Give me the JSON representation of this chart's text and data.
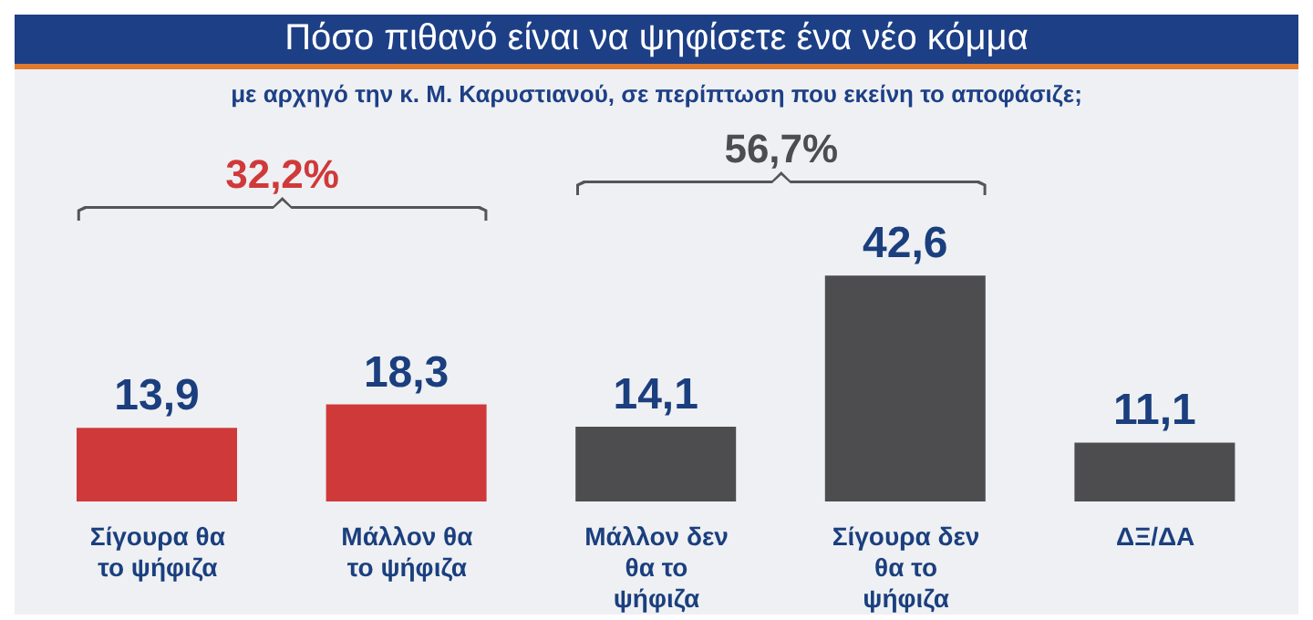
{
  "chart_data": {
    "type": "bar",
    "title": "Πόσο πιθανό είναι να ψηφίσετε ένα νέο κόμμα",
    "subtitle": "με αρχηγό την κ. Μ. Καρυστιανού, σε περίπτωση που εκείνη το αποφάσιζε;",
    "categories": [
      "Σίγουρα θα το ψήφιζα",
      "Μάλλον θα το ψήφιζα",
      "Μάλλον δεν θα το ψήφιζα",
      "Σίγουρα δεν θα το ψήφιζα",
      "ΔΞ/ΔΑ"
    ],
    "values": [
      13.9,
      18.3,
      14.1,
      42.6,
      11.1
    ],
    "value_labels": [
      "13,9",
      "18,3",
      "14,1",
      "42,6",
      "11,1"
    ],
    "colors": [
      "#d0393a",
      "#d0393a",
      "#4d4d4f",
      "#4d4d4f",
      "#4d4d4f"
    ],
    "annotations": [
      "32,2%",
      "56,7%"
    ],
    "grid": false,
    "legend": false
  }
}
